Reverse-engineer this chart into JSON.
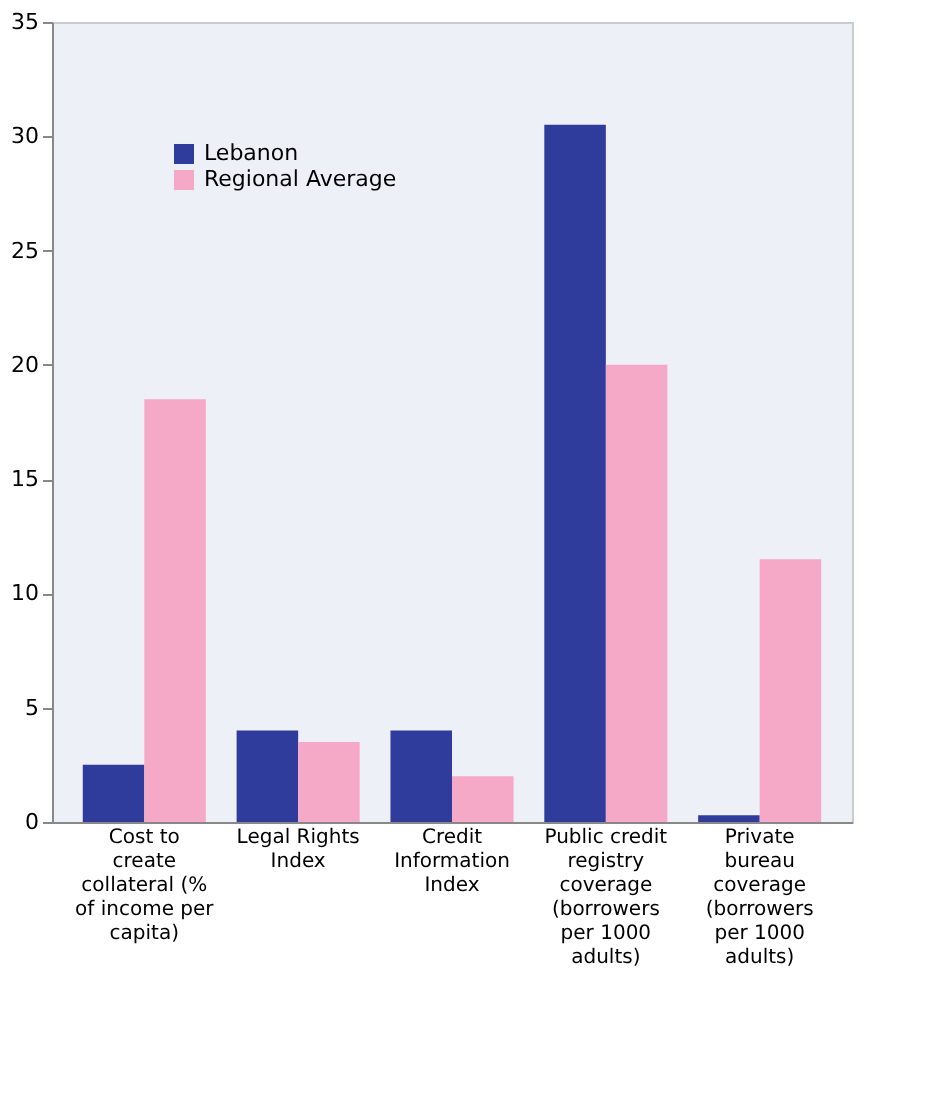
{
  "chart_data": {
    "type": "bar",
    "categories": [
      "Cost to create collateral (% of income per capita)",
      "Legal Rights Index",
      "Credit Information Index",
      "Public credit registry coverage (borrowers per 1000 adults)",
      "Private bureau coverage (borrowers per 1000 adults)"
    ],
    "series": [
      {
        "name": "Lebanon",
        "color": "#2f3c9c",
        "values": [
          2.5,
          4,
          4,
          30.5,
          0.3
        ]
      },
      {
        "name": "Regional Average",
        "color": "#f5a9c6",
        "values": [
          18.5,
          3.5,
          2,
          20,
          11.5
        ]
      }
    ],
    "ylim": [
      0,
      35
    ],
    "yticks": [
      0,
      5,
      10,
      15,
      20,
      25,
      30,
      35
    ],
    "grid": false,
    "legend": "top left"
  }
}
